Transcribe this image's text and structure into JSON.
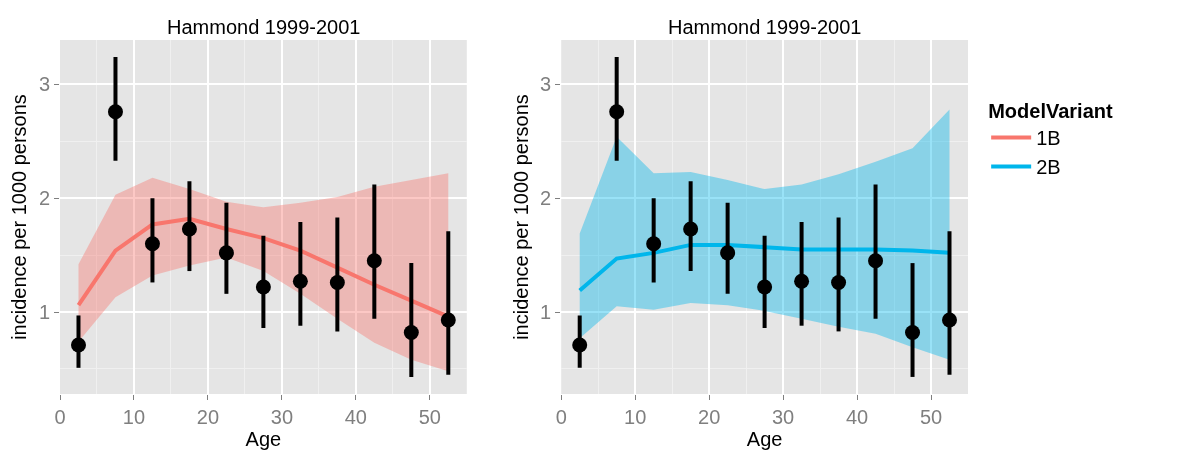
{
  "chart_data": [
    {
      "type": "line",
      "title": "Hammond 1999-2001",
      "xlabel": "Age",
      "ylabel": "incidence per 1000 persons",
      "xlim": [
        0,
        55
      ],
      "ylim": [
        0.28,
        3.39
      ],
      "xticks": [
        0,
        10,
        20,
        30,
        40,
        50
      ],
      "yticks": [
        1,
        2,
        3
      ],
      "grid": true,
      "legend": "right",
      "x": [
        2.5,
        7.5,
        12.5,
        17.5,
        22.5,
        27.5,
        32.5,
        37.5,
        42.5,
        47.5,
        52.5
      ],
      "series": [
        {
          "type": "line",
          "name": "1B",
          "color": "#f8766d",
          "line_style": "solid",
          "values": [
            1.06,
            1.54,
            1.77,
            1.82,
            1.73,
            1.65,
            1.54,
            1.39,
            1.24,
            1.1,
            0.96
          ],
          "lower": [
            0.74,
            1.13,
            1.32,
            1.41,
            1.48,
            1.36,
            1.16,
            0.94,
            0.73,
            0.58,
            0.48
          ],
          "upper": [
            1.42,
            2.03,
            2.18,
            2.08,
            1.97,
            1.92,
            1.96,
            2.01,
            2.1,
            2.16,
            2.22
          ]
        },
        {
          "type": "scatter",
          "color": "#000000",
          "marker": "circle",
          "values": [
            0.71,
            2.76,
            1.6,
            1.73,
            1.52,
            1.22,
            1.27,
            1.26,
            1.45,
            0.82,
            0.93
          ],
          "errors": [
            [
              0.51,
              0.97
            ],
            [
              2.33,
              3.24
            ],
            [
              1.26,
              2.0
            ],
            [
              1.36,
              2.15
            ],
            [
              1.16,
              1.96
            ],
            [
              0.86,
              1.67
            ],
            [
              0.88,
              1.79
            ],
            [
              0.83,
              1.83
            ],
            [
              0.94,
              2.12
            ],
            [
              0.43,
              1.43
            ],
            [
              0.45,
              1.71
            ]
          ]
        }
      ]
    },
    {
      "type": "line",
      "title": "Hammond 1999-2001",
      "xlabel": "Age",
      "ylabel": "incidence per 1000 persons",
      "xlim": [
        0,
        55
      ],
      "ylim": [
        0.28,
        3.39
      ],
      "xticks": [
        0,
        10,
        20,
        30,
        40,
        50
      ],
      "yticks": [
        1,
        2,
        3
      ],
      "grid": true,
      "legend": "right",
      "legend_title": "ModelVariant",
      "x": [
        2.5,
        7.5,
        12.5,
        17.5,
        22.5,
        27.5,
        32.5,
        37.5,
        42.5,
        47.5,
        52.5
      ],
      "series": [
        {
          "type": "line",
          "name": "2B",
          "color": "#00b6eb",
          "line_style": "solid",
          "values": [
            1.19,
            1.47,
            1.52,
            1.59,
            1.59,
            1.57,
            1.55,
            1.55,
            1.55,
            1.54,
            1.52
          ],
          "lower": [
            0.77,
            1.05,
            1.02,
            1.08,
            1.06,
            1.01,
            0.94,
            0.87,
            0.81,
            0.69,
            0.58
          ],
          "upper": [
            1.69,
            2.54,
            2.22,
            2.23,
            2.16,
            2.08,
            2.12,
            2.21,
            2.32,
            2.44,
            2.78
          ]
        },
        {
          "type": "scatter",
          "color": "#000000",
          "marker": "circle",
          "values": [
            0.71,
            2.76,
            1.6,
            1.73,
            1.52,
            1.22,
            1.27,
            1.26,
            1.45,
            0.82,
            0.93
          ],
          "errors": [
            [
              0.51,
              0.97
            ],
            [
              2.33,
              3.24
            ],
            [
              1.26,
              2.0
            ],
            [
              1.36,
              2.15
            ],
            [
              1.16,
              1.96
            ],
            [
              0.86,
              1.67
            ],
            [
              0.88,
              1.79
            ],
            [
              0.83,
              1.83
            ],
            [
              0.94,
              2.12
            ],
            [
              0.43,
              1.43
            ],
            [
              0.45,
              1.71
            ]
          ]
        }
      ]
    }
  ]
}
